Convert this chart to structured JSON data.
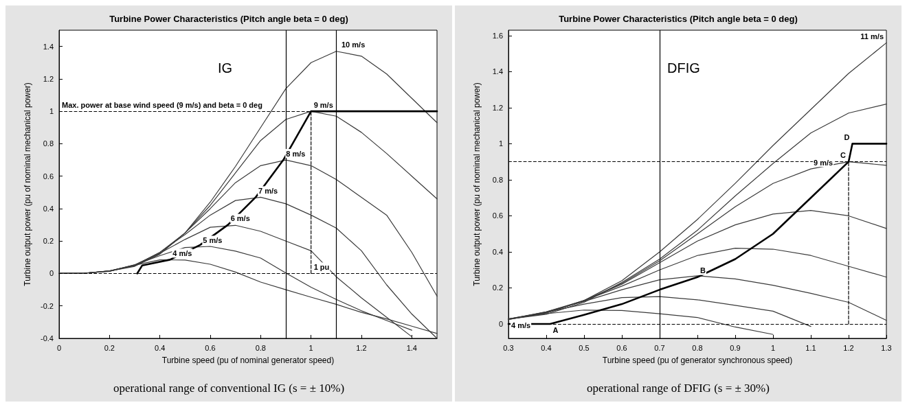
{
  "chart_data": [
    {
      "type": "line",
      "title": "Turbine Power Characteristics (Pitch angle beta = 0 deg)",
      "subtitle": "operational range of conventional IG (s = ± 10%)",
      "xlabel": "Turbine speed (pu of nominal generator speed)",
      "ylabel": "Turbine output power (pu of nominal mechanical power)",
      "x": [
        0,
        0.1,
        0.2,
        0.3,
        0.4,
        0.5,
        0.6,
        0.7,
        0.8,
        0.9,
        1.0,
        1.1,
        1.2,
        1.3,
        1.4,
        1.5
      ],
      "series": [
        {
          "color": "#000000",
          "x": [
            0.31,
            0.33,
            0.44,
            0.56,
            0.67,
            0.78,
            0.89,
            1.0,
            1.5
          ],
          "values": [
            0,
            0.05,
            0.085,
            0.176,
            0.3,
            0.47,
            0.7,
            1.0,
            1.0
          ]
        },
        {
          "color": "#3a3a3a",
          "values": [
            0,
            0.002,
            0.015,
            0.048,
            0.12,
            0.25,
            0.44,
            0.66,
            0.9,
            1.14,
            1.3,
            1.37,
            1.34,
            1.23,
            1.08,
            0.93
          ]
        },
        {
          "color": "#3a3a3a",
          "values": [
            0,
            0.002,
            0.015,
            0.044,
            0.12,
            0.25,
            0.42,
            0.62,
            0.82,
            0.95,
            1.0,
            0.97,
            0.87,
            0.74,
            0.6,
            0.46
          ]
        },
        {
          "color": "#3a3a3a",
          "values": [
            0,
            0.002,
            0.015,
            0.05,
            0.13,
            0.25,
            0.4,
            0.56,
            0.665,
            0.7,
            0.665,
            0.58,
            0.47,
            0.36,
            0.13,
            -0.14
          ]
        },
        {
          "color": "#3a3a3a",
          "values": [
            0,
            0.002,
            0.014,
            0.05,
            0.13,
            0.24,
            0.36,
            0.45,
            0.47,
            0.43,
            0.36,
            0.28,
            0.14,
            -0.07,
            -0.25,
            -0.4
          ]
        },
        {
          "color": "#3a3a3a",
          "values": [
            0,
            0.002,
            0.013,
            0.054,
            0.125,
            0.21,
            0.285,
            0.297,
            0.26,
            0.2,
            0.14,
            -0.02,
            -0.15,
            -0.27,
            -0.39,
            null
          ]
        },
        {
          "color": "#3a3a3a",
          "values": [
            0,
            0.002,
            0.015,
            0.053,
            0.11,
            0.16,
            0.167,
            0.138,
            0.095,
            0.003,
            -0.085,
            -0.16,
            -0.23,
            -0.29,
            -0.35,
            null
          ]
        },
        {
          "color": "#3a3a3a",
          "values": [
            0,
            0.002,
            0.016,
            0.051,
            0.084,
            0.083,
            0.057,
            0.009,
            -0.053,
            -0.1,
            -0.146,
            -0.19,
            -0.24,
            -0.28,
            -0.325,
            -0.37
          ]
        },
        {
          "color": "#000000",
          "line_style": "dashed",
          "x": [
            1,
            1
          ],
          "values": [
            0,
            1
          ]
        }
      ],
      "xlim": [
        0,
        1.5
      ],
      "xticks": [
        0,
        0.2,
        0.4,
        0.6,
        0.8,
        1,
        1.2,
        1.4
      ],
      "ylim": [
        -0.4,
        1.5
      ],
      "yticks": [
        -0.4,
        -0.2,
        0,
        0.2,
        0.4,
        0.6,
        0.8,
        1,
        1.2,
        1.4
      ],
      "ref_lines": [
        {
          "axis": "y",
          "value": 1,
          "color": "#000000",
          "line_style": "dashed"
        },
        {
          "axis": "y",
          "value": 0,
          "color": "#000000",
          "line_style": "dashed"
        },
        {
          "axis": "x",
          "value": 0.9,
          "color": "#000000",
          "line_style": "solid"
        },
        {
          "axis": "x",
          "value": 1.1,
          "color": "#000000",
          "line_style": "solid"
        }
      ],
      "annotations": [
        "IG",
        {
          "text": "Max. power at base wind speed (9 m/s) and beta = 0 deg",
          "x": 0,
          "y": 1
        },
        {
          "text": "4 m/s",
          "x": 0.44,
          "y": 0.085
        },
        {
          "text": "5 m/s",
          "x": 0.56,
          "y": 0.165
        },
        {
          "text": "6 m/s",
          "x": 0.67,
          "y": 0.3
        },
        {
          "text": "7 m/s",
          "x": 0.78,
          "y": 0.47
        },
        {
          "text": "8 m/s",
          "x": 0.89,
          "y": 0.7
        },
        {
          "text": "9 m/s",
          "x": 1.0,
          "y": 1.0
        },
        {
          "text": "10 m/s",
          "x": 1.11,
          "y": 1.37
        },
        {
          "text": "1 pu",
          "x": 1.0,
          "y": 0
        }
      ],
      "grid": false,
      "marker": "none",
      "line_style": "solid"
    },
    {
      "type": "line",
      "title": "Turbine Power Characteristics (Pitch angle beta = 0 deg)",
      "subtitle": "operational range of DFIG (s = ± 30%)",
      "xlabel": "Turbine speed (pu of generator synchronous speed)",
      "ylabel": "Turbine output power (pu of nominal mechanical power)",
      "x": [
        0.3,
        0.4,
        0.5,
        0.6,
        0.7,
        0.8,
        0.9,
        1.0,
        1.1,
        1.2,
        1.3
      ],
      "series": [
        {
          "color": "#000000",
          "x": [
            0.3,
            0.41,
            0.5,
            0.6,
            0.7,
            0.8,
            0.9,
            1.0,
            1.1,
            1.2,
            1.21,
            1.3
          ],
          "values": [
            0,
            0,
            0.05,
            0.11,
            0.19,
            0.26,
            0.36,
            0.5,
            0.7,
            0.9,
            1.0,
            1.0
          ]
        },
        {
          "color": "#3a3a3a",
          "values": [
            0.026,
            0.06,
            0.13,
            0.24,
            0.4,
            0.58,
            0.78,
            0.99,
            1.19,
            1.39,
            1.56
          ]
        },
        {
          "color": "#3a3a3a",
          "values": [
            0.027,
            0.054,
            0.12,
            0.23,
            0.36,
            0.52,
            0.71,
            0.89,
            1.06,
            1.17,
            1.22
          ]
        },
        {
          "color": "#3a3a3a",
          "values": [
            0.027,
            0.062,
            0.128,
            0.225,
            0.35,
            0.5,
            0.65,
            0.78,
            0.86,
            0.9,
            0.88
          ]
        },
        {
          "color": "#3a3a3a",
          "values": [
            0.024,
            0.063,
            0.13,
            0.22,
            0.34,
            0.46,
            0.55,
            0.61,
            0.63,
            0.6,
            0.53
          ]
        },
        {
          "color": "#3a3a3a",
          "values": [
            0.025,
            0.067,
            0.13,
            0.21,
            0.3,
            0.38,
            0.42,
            0.415,
            0.38,
            0.32,
            0.26
          ]
        },
        {
          "color": "#3a3a3a",
          "values": [
            0.027,
            0.067,
            0.125,
            0.19,
            0.245,
            0.267,
            0.25,
            0.215,
            0.17,
            0.12,
            0.02
          ]
        },
        {
          "color": "#3a3a3a",
          "values": [
            0.028,
            0.065,
            0.11,
            0.146,
            0.152,
            0.134,
            0.103,
            0.071,
            -0.014,
            null,
            null
          ]
        },
        {
          "color": "#3a3a3a",
          "values": [
            0.028,
            0.057,
            0.077,
            0.075,
            0.057,
            0.036,
            -0.017,
            -0.058,
            null,
            null,
            null
          ]
        },
        {
          "color": "#000000",
          "line_style": "dashed",
          "x": [
            1.2,
            1.2
          ],
          "values": [
            0,
            0.9
          ]
        }
      ],
      "xlim": [
        0.3,
        1.3
      ],
      "xticks": [
        0.3,
        0.4,
        0.5,
        0.6,
        0.7,
        0.8,
        0.9,
        1,
        1.1,
        1.2,
        1.3
      ],
      "ylim": [
        -0.08,
        1.63
      ],
      "yticks": [
        0,
        0.2,
        0.4,
        0.6,
        0.8,
        1,
        1.2,
        1.4,
        1.6
      ],
      "ref_lines": [
        {
          "axis": "y",
          "value": 0.9,
          "color": "#000000",
          "line_style": "dashed"
        },
        {
          "axis": "y",
          "value": 0,
          "color": "#000000",
          "line_style": "dashed"
        },
        {
          "axis": "x",
          "value": 0.7,
          "color": "#000000",
          "line_style": "solid"
        }
      ],
      "annotations": [
        "DFIG",
        {
          "text": "4 m/s",
          "x": 0.3,
          "y": 0.028
        },
        {
          "text": "9 m/s",
          "x": 1.1,
          "y": 0.86
        },
        {
          "text": "11 m/s",
          "x": 1.3,
          "y": 1.56
        },
        {
          "text": "A",
          "x": 0.41,
          "y": 0
        },
        {
          "text": "B",
          "x": 0.8,
          "y": 0.26
        },
        {
          "text": "C",
          "x": 1.2,
          "y": 0.9
        },
        {
          "text": "D",
          "x": 1.21,
          "y": 1.0
        }
      ],
      "grid": false,
      "marker": "none",
      "line_style": "solid"
    }
  ]
}
